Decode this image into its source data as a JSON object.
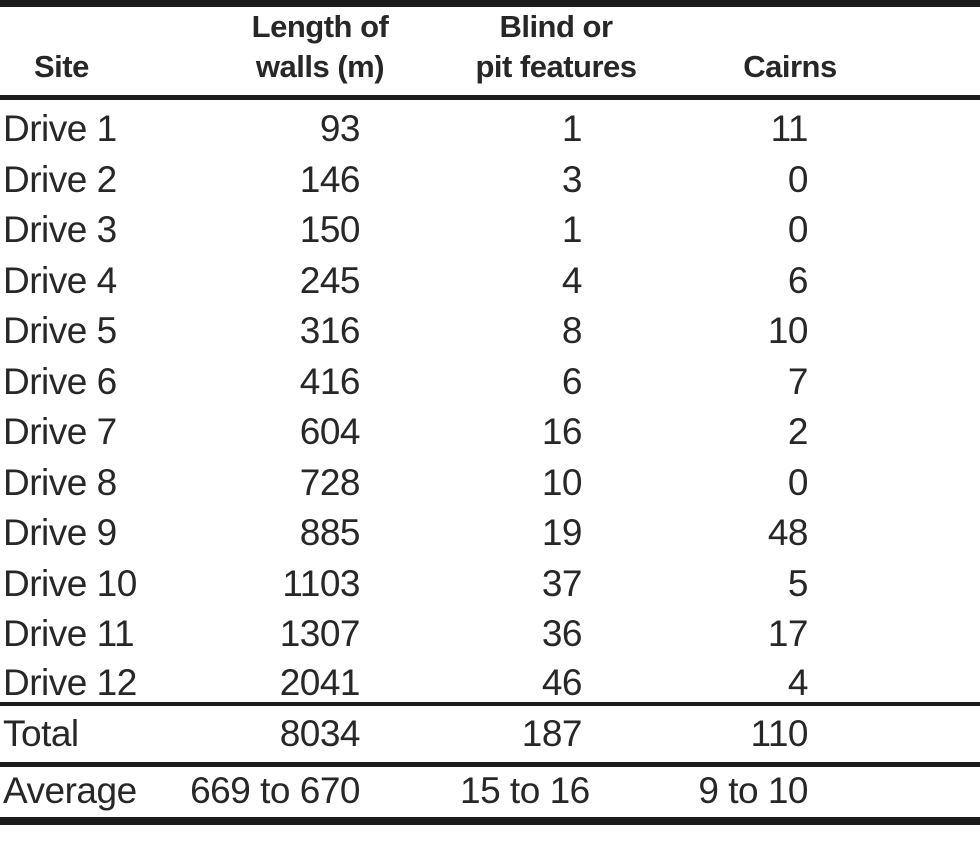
{
  "colors": {
    "text": "#272727",
    "rule": "#1c1c1c",
    "background": "#ffffff"
  },
  "table": {
    "columns": [
      {
        "key": "site",
        "label": "Site",
        "label_lines": [
          "Site"
        ]
      },
      {
        "key": "length",
        "label": "Length of walls (m)",
        "label_lines": [
          "Length of",
          "walls (m)"
        ]
      },
      {
        "key": "blind",
        "label": "Blind or pit features",
        "label_lines": [
          "Blind or",
          "pit features"
        ]
      },
      {
        "key": "cairns",
        "label": "Cairns",
        "label_lines": [
          "Cairns"
        ]
      }
    ],
    "rows": [
      {
        "site": "Drive 1",
        "length": "93",
        "blind": "1",
        "cairns": "11"
      },
      {
        "site": "Drive 2",
        "length": "146",
        "blind": "3",
        "cairns": "0"
      },
      {
        "site": "Drive 3",
        "length": "150",
        "blind": "1",
        "cairns": "0"
      },
      {
        "site": "Drive 4",
        "length": "245",
        "blind": "4",
        "cairns": "6"
      },
      {
        "site": "Drive 5",
        "length": "316",
        "blind": "8",
        "cairns": "10"
      },
      {
        "site": "Drive 6",
        "length": "416",
        "blind": "6",
        "cairns": "7"
      },
      {
        "site": "Drive 7",
        "length": "604",
        "blind": "16",
        "cairns": "2"
      },
      {
        "site": "Drive 8",
        "length": "728",
        "blind": "10",
        "cairns": "0"
      },
      {
        "site": "Drive 9",
        "length": "885",
        "blind": "19",
        "cairns": "48"
      },
      {
        "site": "Drive 10",
        "length": "1103",
        "blind": "37",
        "cairns": "5"
      },
      {
        "site": "Drive 11",
        "length": "1307",
        "blind": "36",
        "cairns": "17"
      },
      {
        "site": "Drive 12",
        "length": "2041",
        "blind": "46",
        "cairns": "4"
      }
    ],
    "total_row": {
      "site": "Total",
      "length": "8034",
      "blind": "187",
      "cairns": "110"
    },
    "average_row": {
      "site": "Average",
      "length": "669 to 670",
      "blind": "15 to 16",
      "cairns": "9 to 10"
    }
  }
}
